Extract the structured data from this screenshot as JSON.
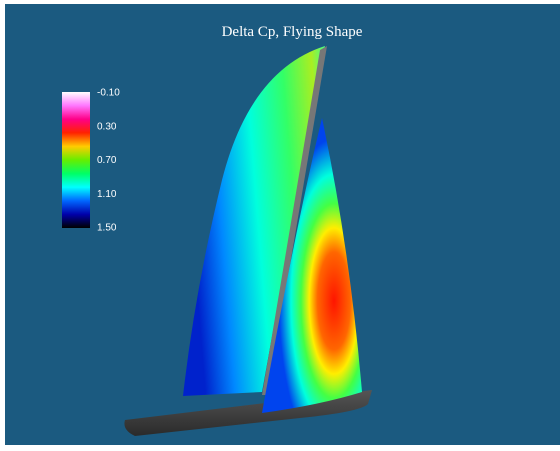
{
  "title": "Delta Cp, Flying Shape",
  "colorbar": {
    "labels": [
      "-0.10",
      "0.30",
      "0.70",
      "1.10",
      "1.50"
    ]
  }
}
